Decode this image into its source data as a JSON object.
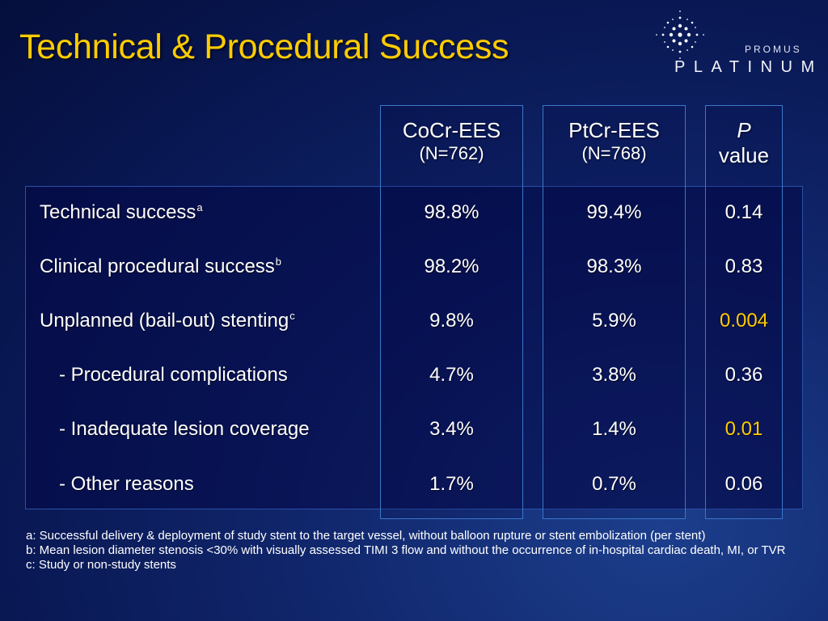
{
  "title": "Technical & Procedural Success",
  "logo": {
    "small": "PROMUS",
    "big": "PLATINUM",
    "mark": "starburst-logo-icon"
  },
  "columns": [
    {
      "name": "CoCr-EES",
      "n": "(N=762)"
    },
    {
      "name": "PtCr-EES",
      "n": "(N=768)"
    },
    {
      "name": "P",
      "n": "value"
    }
  ],
  "rows": [
    {
      "label": "Technical success",
      "sup": "a",
      "indent": false,
      "v1": "98.8%",
      "v2": "99.4%",
      "p": "0.14",
      "significant": false
    },
    {
      "label": "Clinical procedural success",
      "sup": "b",
      "indent": false,
      "v1": "98.2%",
      "v2": "98.3%",
      "p": "0.83",
      "significant": false
    },
    {
      "label": "Unplanned (bail-out) stenting",
      "sup": "c",
      "indent": false,
      "v1": "9.8%",
      "v2": "5.9%",
      "p": "0.004",
      "significant": true
    },
    {
      "label": "- Procedural complications",
      "sup": "",
      "indent": true,
      "v1": "4.7%",
      "v2": "3.8%",
      "p": "0.36",
      "significant": false
    },
    {
      "label": "- Inadequate lesion coverage",
      "sup": "",
      "indent": true,
      "v1": "3.4%",
      "v2": "1.4%",
      "p": "0.01",
      "significant": true
    },
    {
      "label": "- Other reasons",
      "sup": "",
      "indent": true,
      "v1": "1.7%",
      "v2": "0.7%",
      "p": "0.06",
      "significant": false
    }
  ],
  "footnotes": [
    "a: Successful delivery & deployment of study stent to the target vessel, without balloon rupture or stent embolization (per stent)",
    "b: Mean lesion diameter stenosis <30% with visually assessed TIMI 3 flow and without the occurrence of in-hospital cardiac death, MI, or TVR",
    "c: Study or non-study stents"
  ],
  "colors": {
    "title": "#ffcc00",
    "significant": "#ffcc00",
    "text": "#ffffff",
    "column_border": "#3a78c8"
  }
}
